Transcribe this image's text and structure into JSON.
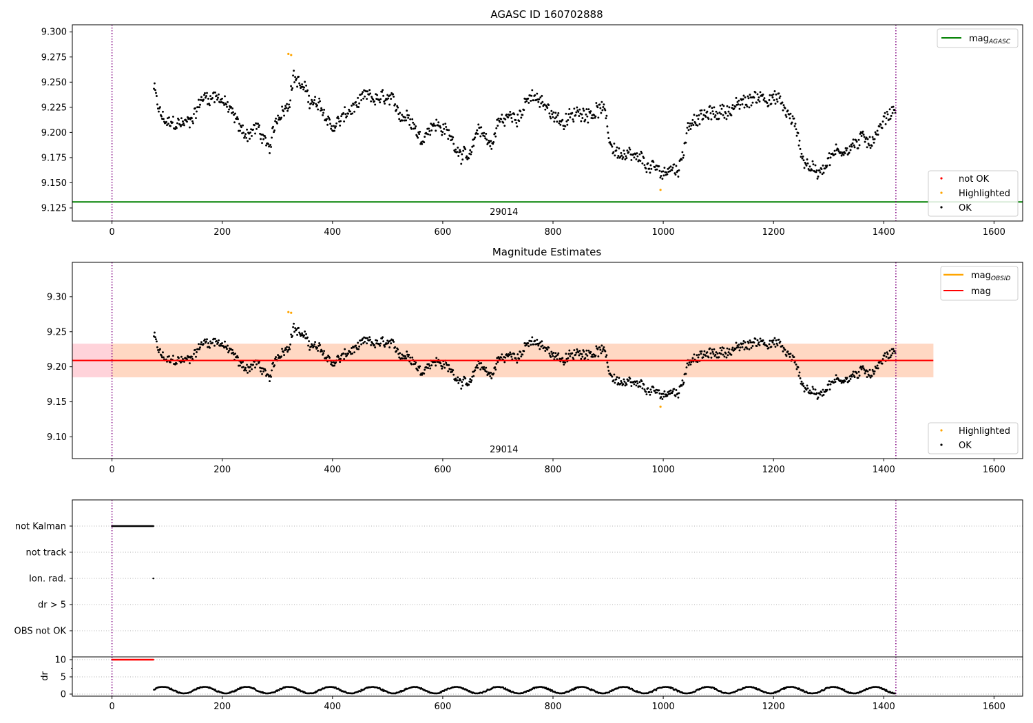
{
  "figure": {
    "background": "#ffffff"
  },
  "colors": {
    "ok": "#000000",
    "highlighted": "#ffa500",
    "not_ok": "#ff0000",
    "mag_agasc": "#008000",
    "mag_obsid": "#ffa500",
    "mag": "#ff0000",
    "obsid_vline": "#800080",
    "band_outer": "#ffc0cb",
    "band_inner": "#ffdab9"
  },
  "chart_data": [
    {
      "id": "agasc_panel",
      "type": "scatter",
      "title": "AGASC ID 160702888",
      "xlim": [
        -72,
        1652
      ],
      "ylim": [
        9.112,
        9.307
      ],
      "xticks": [
        0,
        200,
        400,
        600,
        800,
        1000,
        1200,
        1400,
        1600
      ],
      "xtick_labels": [
        "0",
        "200",
        "400",
        "600",
        "800",
        "1000",
        "1200",
        "1400",
        "1600"
      ],
      "yticks": [
        9.125,
        9.15,
        9.175,
        9.2,
        9.225,
        9.25,
        9.275,
        9.3
      ],
      "ytick_labels": [
        "9.125",
        "9.150",
        "9.175",
        "9.200",
        "9.225",
        "9.250",
        "9.275",
        "9.300"
      ],
      "grid": false,
      "hlines": [
        {
          "y": 9.131,
          "color": "#008000",
          "label": "mag_AGASC"
        }
      ],
      "vlines": [
        0,
        1422
      ],
      "obsid_label": {
        "text": "29014",
        "x": 711
      },
      "legend_upper": {
        "position": "upper right",
        "entries": [
          {
            "text": "mag",
            "sub": "AGASC",
            "color": "#008000"
          }
        ]
      },
      "legend_lower": {
        "position": "lower right",
        "entries": [
          {
            "text": "not OK",
            "color": "#ff0000"
          },
          {
            "text": "Highlighted",
            "color": "#ffa500"
          },
          {
            "text": "OK",
            "color": "#000000"
          }
        ]
      },
      "highlighted_points": [
        [
          320,
          9.278
        ],
        [
          325,
          9.277
        ],
        [
          995,
          9.143
        ]
      ]
    },
    {
      "id": "mag_panel",
      "type": "scatter",
      "title": "Magnitude Estimates",
      "xlim": [
        -72,
        1652
      ],
      "ylim": [
        9.069,
        9.349
      ],
      "xticks": [
        0,
        200,
        400,
        600,
        800,
        1000,
        1200,
        1400,
        1600
      ],
      "xtick_labels": [
        "0",
        "200",
        "400",
        "600",
        "800",
        "1000",
        "1200",
        "1400",
        "1600"
      ],
      "yticks": [
        9.1,
        9.15,
        9.2,
        9.25,
        9.3
      ],
      "ytick_labels": [
        "9.10",
        "9.15",
        "9.20",
        "9.25",
        "9.30"
      ],
      "grid": false,
      "hlines": [
        {
          "y": 9.209,
          "color": "#ff0000",
          "label": "mag",
          "x_end": 1490
        }
      ],
      "bands": [
        {
          "x0": -72,
          "x1": 1490,
          "y0": 9.185,
          "y1": 9.233,
          "color": "#ffc0cb"
        },
        {
          "x0": 0,
          "x1": 1490,
          "y0": 9.185,
          "y1": 9.233,
          "color": "#ffdab9"
        }
      ],
      "vlines": [
        0,
        1422
      ],
      "obsid_label": {
        "text": "29014",
        "x": 711
      },
      "legend_upper": {
        "position": "upper right",
        "entries": [
          {
            "text": "mag",
            "sub": "OBSID",
            "color": "#ffa500"
          },
          {
            "text": "mag",
            "sub": "",
            "color": "#ff0000"
          }
        ]
      },
      "legend_lower": {
        "position": "lower right",
        "entries": [
          {
            "text": "Highlighted",
            "color": "#ffa500"
          },
          {
            "text": "OK",
            "color": "#000000"
          }
        ]
      },
      "highlighted_points": [
        [
          320,
          9.278
        ],
        [
          325,
          9.277
        ],
        [
          995,
          9.143
        ]
      ]
    },
    {
      "id": "flags_panel",
      "type": "scatter",
      "title": "",
      "xlim": [
        -72,
        1652
      ],
      "categories": [
        "not Kalman",
        "not track",
        "Ion. rad.",
        "dr > 5",
        "OBS not OK"
      ],
      "grid": true,
      "vlines": [
        0,
        1422
      ],
      "segments": [
        {
          "category": "not Kalman",
          "x0": 0,
          "x1": 76
        }
      ],
      "points": [
        {
          "category": "Ion. rad.",
          "x": 75
        }
      ]
    },
    {
      "id": "dr_panel",
      "type": "scatter",
      "title": "",
      "ylabel": "dr",
      "xlim": [
        -72,
        1652
      ],
      "ylim": [
        -0.6,
        10.8
      ],
      "xticks": [
        0,
        200,
        400,
        600,
        800,
        1000,
        1200,
        1400,
        1600
      ],
      "xtick_labels": [
        "0",
        "200",
        "400",
        "600",
        "800",
        "1000",
        "1200",
        "1400",
        "1600"
      ],
      "yticks": [
        0,
        5,
        10
      ],
      "ytick_labels": [
        "0",
        "5",
        "10"
      ],
      "vlines": [
        0,
        1422
      ],
      "clipped_range": {
        "x0": 0,
        "x1": 76,
        "value": 10,
        "color": "#ff0000"
      },
      "dr_range": [
        0.2,
        2.1
      ]
    }
  ]
}
